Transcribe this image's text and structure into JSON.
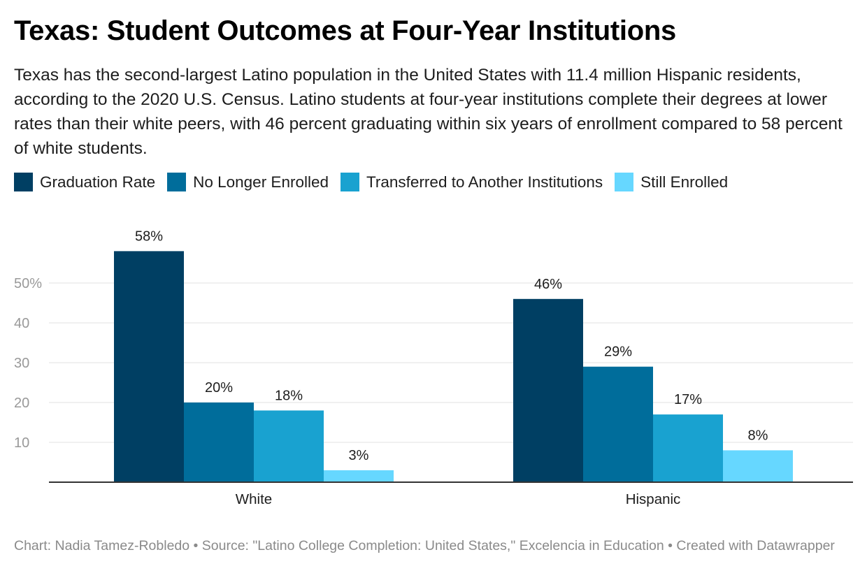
{
  "header": {
    "title": "Texas: Student Outcomes at Four-Year Institutions",
    "subtitle": "Texas has the second-largest Latino population in the United States with 11.4 million Hispanic residents, according to the 2020 U.S. Census. Latino students at four-year institutions complete their degrees at lower rates than their white peers, with 46 percent graduating within six years of enrollment compared to 58 percent of white students."
  },
  "footer": {
    "credit": "Chart: Nadia Tamez-Robledo • Source: \"Latino College Completion: United States,\" Excelencia in Education • Created with Datawrapper"
  },
  "colors": {
    "graduation": "#003f63",
    "no_longer": "#006d9b",
    "transferred": "#19a2d0",
    "still": "#66d7ff",
    "grid": "#e1e1e1",
    "axis": "#333333",
    "tick_text": "#999999"
  },
  "chart_data": {
    "type": "bar",
    "title": "Texas: Student Outcomes at Four-Year Institutions",
    "categories": [
      "White",
      "Hispanic"
    ],
    "series": [
      {
        "name": "Graduation Rate",
        "values": [
          58,
          46
        ],
        "labels": [
          "58%",
          "46%"
        ]
      },
      {
        "name": "No Longer Enrolled",
        "values": [
          20,
          29
        ],
        "labels": [
          "20%",
          "29%"
        ]
      },
      {
        "name": "Transferred to Another Institutions",
        "values": [
          18,
          17
        ],
        "labels": [
          "18%",
          "17%"
        ]
      },
      {
        "name": "Still Enrolled",
        "values": [
          3,
          8
        ],
        "labels": [
          "3%",
          "8%"
        ]
      }
    ],
    "yticks": [
      10,
      20,
      30,
      40,
      50
    ],
    "ytick_labels": [
      "10",
      "20",
      "30",
      "40",
      "50%"
    ],
    "ylim": [
      0,
      60
    ],
    "xlabel": "",
    "ylabel": "",
    "grid": true,
    "legend_position": "top-left"
  }
}
